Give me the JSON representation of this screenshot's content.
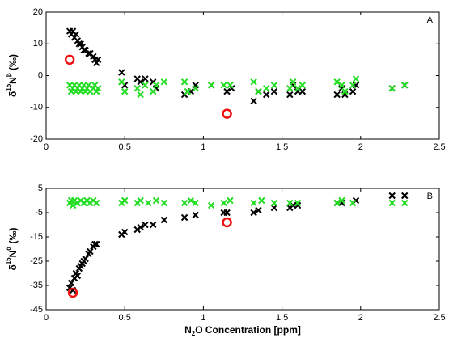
{
  "chart_data": [
    {
      "type": "scatter",
      "annotation": "A",
      "ylabel": [
        "δ",
        "15",
        "N",
        "β",
        " (‰)"
      ],
      "xlim": [
        0,
        2.5
      ],
      "xticks": [
        0,
        0.5,
        1,
        1.5,
        2,
        2.5
      ],
      "ylim": [
        -20,
        20
      ],
      "yticks": [
        -20,
        -10,
        0,
        10,
        20
      ],
      "series": [
        {
          "color": "#000000",
          "marker": "x",
          "x": [
            0.15,
            0.16,
            0.17,
            0.18,
            0.19,
            0.2,
            0.21,
            0.22,
            0.23,
            0.24,
            0.25,
            0.27,
            0.28,
            0.3,
            0.31,
            0.32,
            0.33,
            0.48,
            0.5,
            0.58,
            0.6,
            0.63,
            0.68,
            0.7,
            0.88,
            0.92,
            0.95,
            1.05,
            1.15,
            1.18,
            1.32,
            1.35,
            1.4,
            1.45,
            1.55,
            1.57,
            1.6,
            1.63,
            1.85,
            1.88,
            1.9,
            1.95,
            1.97,
            2.2,
            2.28
          ],
          "values": [
            14,
            13,
            14,
            12,
            13,
            11,
            10,
            10,
            9,
            8,
            8,
            7,
            7,
            6,
            5,
            4,
            5,
            1,
            -3,
            -1,
            -2,
            -1,
            -2,
            -4,
            -6,
            -5,
            -3,
            -3,
            -5,
            -4,
            -8,
            -5,
            -6,
            -5,
            -6,
            -3,
            -5,
            -5,
            -6,
            -4,
            -6,
            -5,
            -3,
            -4,
            -3
          ]
        },
        {
          "color": "#22dd22",
          "marker": "x",
          "x": [
            0.15,
            0.16,
            0.17,
            0.18,
            0.19,
            0.2,
            0.21,
            0.22,
            0.23,
            0.24,
            0.25,
            0.26,
            0.27,
            0.28,
            0.3,
            0.31,
            0.32,
            0.33,
            0.48,
            0.5,
            0.58,
            0.6,
            0.63,
            0.68,
            0.7,
            0.75,
            0.88,
            0.9,
            0.95,
            1.05,
            1.13,
            1.17,
            1.32,
            1.35,
            1.4,
            1.45,
            1.55,
            1.57,
            1.6,
            1.63,
            1.85,
            1.88,
            1.9,
            1.95,
            1.97,
            2.2,
            2.28
          ],
          "values": [
            -3,
            -5,
            -4,
            -3,
            -5,
            -4,
            -3,
            -5,
            -4,
            -3,
            -5,
            -4,
            -3,
            -5,
            -4,
            -3,
            -5,
            -4,
            -2,
            -5,
            -4,
            -6,
            -3,
            -5,
            -3,
            -2,
            -2,
            -5,
            -4,
            -3,
            -3,
            -3,
            -2,
            -5,
            -4,
            -3,
            -4,
            -2,
            -4,
            -3,
            -2,
            -3,
            -5,
            -3,
            -1,
            -4,
            -3
          ]
        },
        {
          "color": "#ee1111",
          "marker": "circle",
          "x": [
            0.15,
            1.15
          ],
          "values": [
            5,
            -12
          ]
        }
      ]
    },
    {
      "type": "scatter",
      "annotation": "B",
      "ylabel": [
        "δ",
        "15",
        "N",
        "α",
        " (‰)"
      ],
      "xlabel": [
        "N",
        "2",
        "O Concentration [ppm]"
      ],
      "xlim": [
        0,
        2.5
      ],
      "xticks": [
        0,
        0.5,
        1,
        1.5,
        2,
        2.5
      ],
      "ylim": [
        -45,
        5
      ],
      "yticks": [
        -45,
        -35,
        -25,
        -15,
        -5,
        5
      ],
      "series": [
        {
          "color": "#000000",
          "marker": "x",
          "x": [
            0.15,
            0.16,
            0.17,
            0.18,
            0.19,
            0.2,
            0.21,
            0.22,
            0.23,
            0.24,
            0.25,
            0.27,
            0.28,
            0.3,
            0.31,
            0.32,
            0.48,
            0.5,
            0.58,
            0.6,
            0.63,
            0.68,
            0.75,
            0.88,
            0.95,
            1.13,
            1.15,
            1.32,
            1.35,
            1.45,
            1.55,
            1.57,
            1.6,
            1.85,
            1.88,
            1.97,
            2.2,
            2.28
          ],
          "values": [
            -36,
            -34,
            -37,
            -32,
            -30,
            -31,
            -28,
            -27,
            -26,
            -25,
            -24,
            -22,
            -21,
            -19,
            -18,
            -18,
            -14,
            -13,
            -12,
            -11,
            -10,
            -10,
            -8,
            -7,
            -6,
            -5,
            -5,
            -5,
            -4,
            -3,
            -3,
            -2,
            -2,
            -1,
            -1,
            0,
            2,
            2
          ]
        },
        {
          "color": "#22dd22",
          "marker": "x",
          "x": [
            0.15,
            0.16,
            0.17,
            0.18,
            0.2,
            0.22,
            0.24,
            0.26,
            0.28,
            0.3,
            0.32,
            0.48,
            0.5,
            0.58,
            0.6,
            0.65,
            0.7,
            0.75,
            0.88,
            0.92,
            0.95,
            1.05,
            1.13,
            1.17,
            1.32,
            1.37,
            1.45,
            1.55,
            1.6,
            1.85,
            1.88,
            1.95,
            2.2,
            2.28
          ],
          "values": [
            -1,
            0,
            -2,
            0,
            -1,
            0,
            -1,
            0,
            -1,
            0,
            -1,
            -1,
            0,
            -1,
            0,
            -1,
            0,
            -1,
            -1,
            0,
            -1,
            -2,
            -1,
            0,
            -1,
            0,
            -1,
            -1,
            -1,
            -1,
            0,
            -1,
            -1,
            -1
          ]
        },
        {
          "color": "#ee1111",
          "marker": "circle",
          "x": [
            0.17,
            1.15
          ],
          "values": [
            -38,
            -9
          ]
        }
      ]
    }
  ]
}
